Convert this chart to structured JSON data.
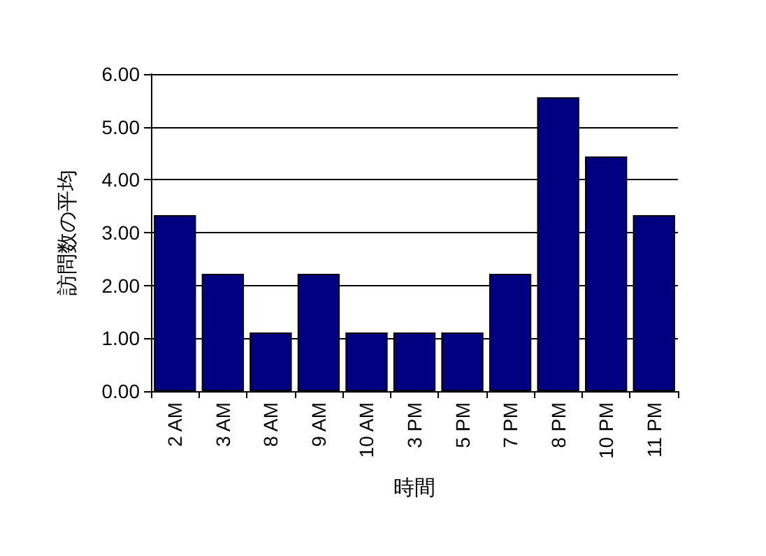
{
  "chart_data": {
    "type": "bar",
    "xlabel": "時間",
    "ylabel": "訪問数の平均",
    "categories": [
      "2 AM",
      "3 AM",
      "8 AM",
      "9 AM",
      "10 AM",
      "3 PM",
      "5 PM",
      "7 PM",
      "8 PM",
      "10 PM",
      "11 PM"
    ],
    "values": [
      3.33,
      2.22,
      1.11,
      2.22,
      1.11,
      1.11,
      1.11,
      2.22,
      5.56,
      4.44,
      3.33
    ],
    "color": "#000080",
    "ylim": [
      0,
      6
    ],
    "yticks": [
      {
        "value": 0,
        "label": "0.00"
      },
      {
        "value": 1,
        "label": "1.00"
      },
      {
        "value": 2,
        "label": "2.00"
      },
      {
        "value": 3,
        "label": "3.00"
      },
      {
        "value": 4,
        "label": "4.00"
      },
      {
        "value": 5,
        "label": "5.00"
      },
      {
        "value": 6,
        "label": "6.00"
      }
    ],
    "grid": "y"
  }
}
